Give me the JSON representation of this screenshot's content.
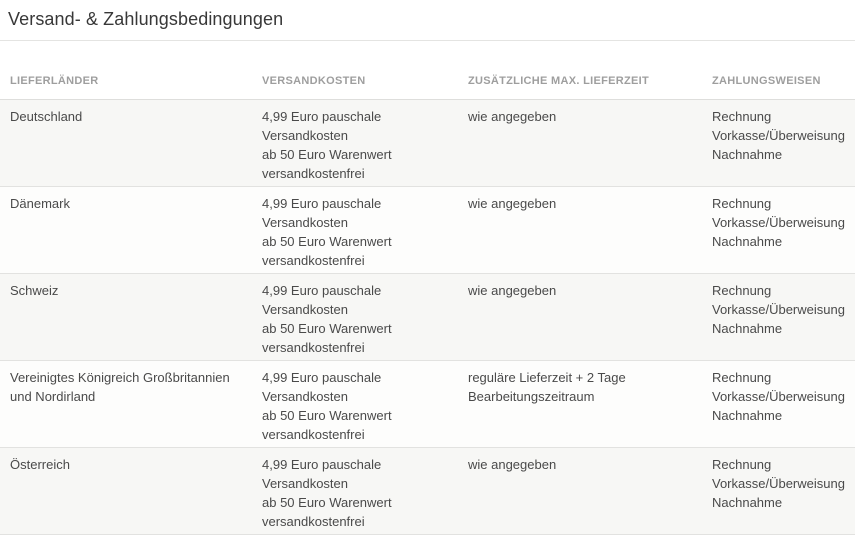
{
  "page": {
    "title": "Versand- & Zahlungsbedingungen"
  },
  "table": {
    "columns": [
      "LIEFERLÄNDER",
      "VERSANDKOSTEN",
      "ZUSÄTZLICHE MAX. LIEFERZEIT",
      "ZAHLUNGSWEISEN"
    ],
    "rows": [
      {
        "country": [
          "Deutschland"
        ],
        "shipping_costs": [
          "4,99 Euro pauschale",
          "Versandkosten",
          "ab 50 Euro Warenwert",
          "versandkostenfrei"
        ],
        "max_delivery_time": [
          "wie angegeben"
        ],
        "payment_methods": [
          "Rechnung",
          "Vorkasse/Überweisung",
          "Nachnahme"
        ]
      },
      {
        "country": [
          "Dänemark"
        ],
        "shipping_costs": [
          "4,99 Euro pauschale",
          "Versandkosten",
          "ab 50 Euro Warenwert",
          "versandkostenfrei"
        ],
        "max_delivery_time": [
          "wie angegeben"
        ],
        "payment_methods": [
          "Rechnung",
          "Vorkasse/Überweisung",
          "Nachnahme"
        ]
      },
      {
        "country": [
          "Schweiz"
        ],
        "shipping_costs": [
          "4,99 Euro pauschale",
          "Versandkosten",
          "ab 50 Euro Warenwert",
          "versandkostenfrei"
        ],
        "max_delivery_time": [
          "wie angegeben"
        ],
        "payment_methods": [
          "Rechnung",
          "Vorkasse/Überweisung",
          "Nachnahme"
        ]
      },
      {
        "country": [
          "Vereinigtes Königreich Großbritannien",
          "und Nordirland"
        ],
        "shipping_costs": [
          "4,99 Euro pauschale",
          "Versandkosten",
          "ab 50 Euro Warenwert",
          "versandkostenfrei"
        ],
        "max_delivery_time": [
          "reguläre Lieferzeit + 2 Tage",
          "Bearbeitungszeitraum"
        ],
        "payment_methods": [
          "Rechnung",
          "Vorkasse/Überweisung",
          "Nachnahme"
        ]
      },
      {
        "country": [
          "Österreich"
        ],
        "shipping_costs": [
          "4,99 Euro pauschale",
          "Versandkosten",
          "ab 50 Euro Warenwert",
          "versandkostenfrei"
        ],
        "max_delivery_time": [
          "wie angegeben"
        ],
        "payment_methods": [
          "Rechnung",
          "Vorkasse/Überweisung",
          "Nachnahme"
        ]
      }
    ]
  },
  "colors": {
    "title_text": "#383838",
    "header_text": "#9e9e9e",
    "body_text": "#4a4a4a",
    "row_odd_bg": "#f7f7f5",
    "row_even_bg": "#fdfdfc",
    "divider": "#dededc"
  }
}
